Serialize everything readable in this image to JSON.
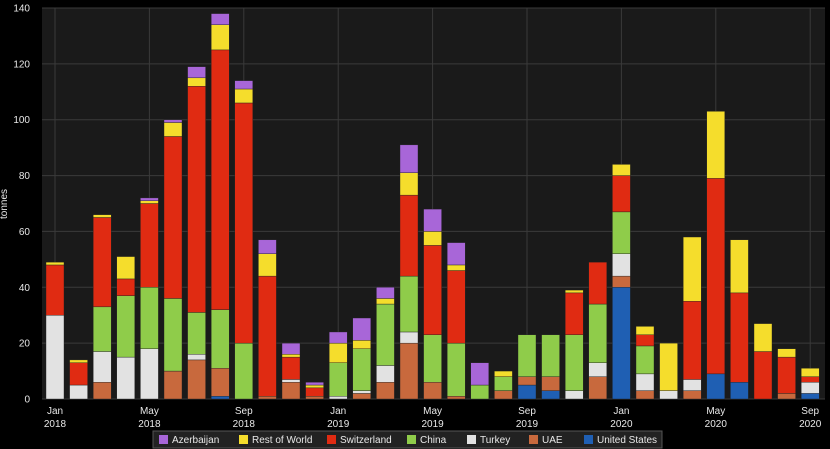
{
  "chart_data": {
    "type": "bar",
    "stacked": true,
    "ylabel": "tonnes",
    "ylim": [
      0,
      140
    ],
    "yticks": [
      0,
      20,
      40,
      60,
      80,
      100,
      120,
      140
    ],
    "grid": true,
    "legend_position": "bottom",
    "x_tick_labels": [
      {
        "index": 0,
        "lines": [
          "Jan",
          "2018"
        ]
      },
      {
        "index": 4,
        "lines": [
          "May",
          "2018"
        ]
      },
      {
        "index": 8,
        "lines": [
          "Sep",
          "2018"
        ]
      },
      {
        "index": 12,
        "lines": [
          "Jan",
          "2019"
        ]
      },
      {
        "index": 16,
        "lines": [
          "May",
          "2019"
        ]
      },
      {
        "index": 20,
        "lines": [
          "Sep",
          "2019"
        ]
      },
      {
        "index": 24,
        "lines": [
          "Jan",
          "2020"
        ]
      },
      {
        "index": 28,
        "lines": [
          "May",
          "2020"
        ]
      },
      {
        "index": 32,
        "lines": [
          "Sep",
          "2020"
        ]
      }
    ],
    "categories": [
      "2018-01",
      "2018-02",
      "2018-03",
      "2018-04",
      "2018-05",
      "2018-06",
      "2018-07",
      "2018-08",
      "2018-09",
      "2018-10",
      "2018-11",
      "2018-12",
      "2019-01",
      "2019-02",
      "2019-03",
      "2019-04",
      "2019-05",
      "2019-06",
      "2019-07",
      "2019-08",
      "2019-09",
      "2019-10",
      "2019-11",
      "2019-12",
      "2020-01",
      "2020-02",
      "2020-03",
      "2020-04",
      "2020-05",
      "2020-06",
      "2020-07",
      "2020-08",
      "2020-09"
    ],
    "series": [
      {
        "name": "United States",
        "color": "#1f5fb3",
        "values": [
          0,
          0,
          0,
          0,
          0,
          0,
          0,
          1,
          0,
          0,
          0,
          0,
          0,
          0,
          0,
          0,
          0,
          0,
          0,
          0,
          5,
          3,
          0,
          0,
          40,
          0,
          0,
          0,
          9,
          6,
          0,
          0,
          2
        ]
      },
      {
        "name": "UAE",
        "color": "#c8693d",
        "values": [
          0,
          0,
          6,
          0,
          0,
          10,
          14,
          10,
          0,
          1,
          6,
          1,
          0,
          2,
          6,
          20,
          6,
          1,
          0,
          3,
          3,
          5,
          0,
          8,
          4,
          3,
          0,
          3,
          0,
          0,
          0,
          2,
          0
        ]
      },
      {
        "name": "Turkey",
        "color": "#e2e2e2",
        "values": [
          30,
          5,
          11,
          15,
          18,
          0,
          2,
          0,
          0,
          0,
          1,
          0,
          1,
          1,
          6,
          4,
          0,
          0,
          0,
          0,
          0,
          0,
          3,
          5,
          8,
          6,
          3,
          4,
          0,
          0,
          0,
          0,
          4
        ]
      },
      {
        "name": "China",
        "color": "#8fcc4a",
        "values": [
          0,
          0,
          16,
          22,
          22,
          26,
          15,
          21,
          20,
          0,
          0,
          0,
          12,
          15,
          22,
          20,
          17,
          19,
          5,
          5,
          15,
          15,
          20,
          21,
          15,
          10,
          0,
          0,
          0,
          0,
          0,
          0,
          0
        ]
      },
      {
        "name": "Switzerland",
        "color": "#e02b12",
        "values": [
          18,
          8,
          32,
          6,
          30,
          58,
          81,
          93,
          86,
          43,
          8,
          3,
          0,
          0,
          0,
          29,
          32,
          26,
          0,
          0,
          0,
          0,
          15,
          15,
          13,
          4,
          0,
          28,
          70,
          32,
          17,
          13,
          2
        ]
      },
      {
        "name": "Rest of World",
        "color": "#f5dd2c",
        "values": [
          1,
          1,
          1,
          8,
          1,
          5,
          3,
          9,
          5,
          8,
          1,
          1,
          7,
          3,
          2,
          8,
          5,
          2,
          0,
          2,
          0,
          0,
          1,
          0,
          4,
          3,
          17,
          23,
          24,
          19,
          10,
          3,
          3
        ]
      },
      {
        "name": "Azerbaijan",
        "color": "#a866d8",
        "values": [
          0,
          0,
          0,
          0,
          1,
          1,
          4,
          4,
          3,
          5,
          4,
          1,
          4,
          8,
          4,
          10,
          8,
          8,
          8,
          0,
          0,
          0,
          0,
          0,
          0,
          0,
          0,
          0,
          0,
          0,
          0,
          0,
          0
        ]
      }
    ],
    "legend_order": [
      "Azerbaijan",
      "Rest of World",
      "Switzerland",
      "China",
      "Turkey",
      "UAE",
      "United States"
    ]
  }
}
